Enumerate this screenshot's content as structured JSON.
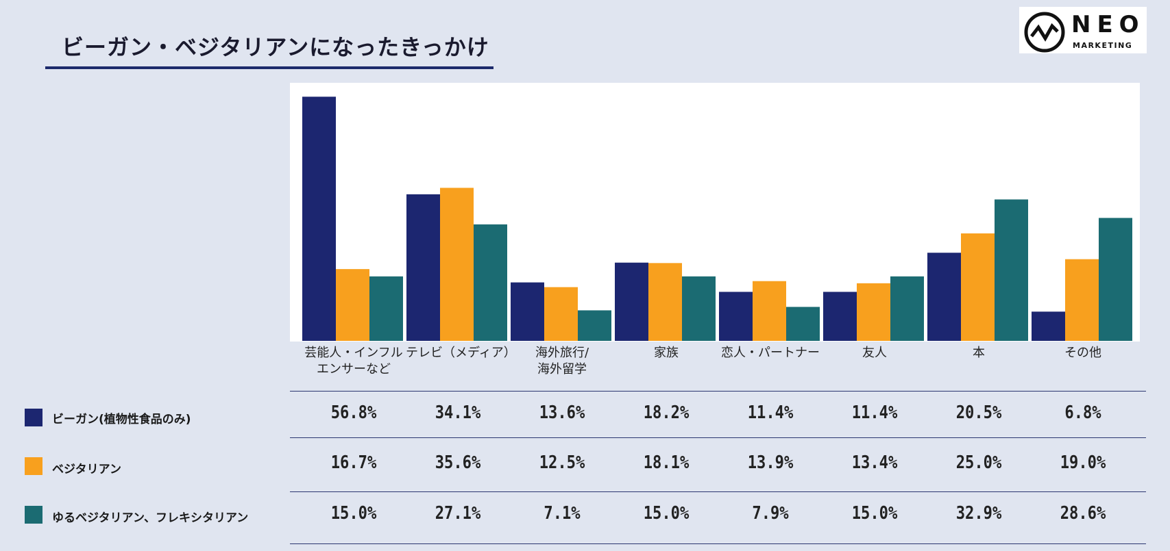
{
  "header": {
    "title": "ビーガン・ベジタリアンになったきっかけ",
    "logo_main": "NEO",
    "logo_sub": "MARKETING"
  },
  "colors": {
    "vegan": "#1c2670",
    "vegetarian": "#f8a01e",
    "flexitarian": "#1b6b72",
    "background": "#e0e5f0"
  },
  "chart_data": {
    "type": "bar",
    "title": "ビーガン・ベジタリアンになったきっかけ",
    "categories": [
      "芸能人・インフル\nエンサーなど",
      "テレビ（メディア）",
      "海外旅行/\n海外留学",
      "家族",
      "恋人・パートナー",
      "友人",
      "本",
      "その他"
    ],
    "series": [
      {
        "name": "ビーガン(植物性食品のみ)",
        "values": [
          56.8,
          34.1,
          13.6,
          18.2,
          11.4,
          11.4,
          20.5,
          6.8
        ],
        "labels": [
          "56.8%",
          "34.1%",
          "13.6%",
          "18.2%",
          "11.4%",
          "11.4%",
          "20.5%",
          "6.8%"
        ]
      },
      {
        "name": "ベジタリアン",
        "values": [
          16.7,
          35.6,
          12.5,
          18.1,
          13.9,
          13.4,
          25.0,
          19.0
        ],
        "labels": [
          "16.7%",
          "35.6%",
          "12.5%",
          "18.1%",
          "13.9%",
          "13.4%",
          "25.0%",
          "19.0%"
        ]
      },
      {
        "name": "ゆるベジタリアン、フレキシタリアン",
        "values": [
          15.0,
          27.1,
          7.1,
          15.0,
          7.9,
          15.0,
          32.9,
          28.6
        ],
        "labels": [
          "15.0%",
          "27.1%",
          "7.1%",
          "15.0%",
          "7.9%",
          "15.0%",
          "32.9%",
          "28.6%"
        ]
      }
    ],
    "ylim": [
      0,
      60
    ],
    "xlabel": "",
    "ylabel": "",
    "grid": false
  }
}
